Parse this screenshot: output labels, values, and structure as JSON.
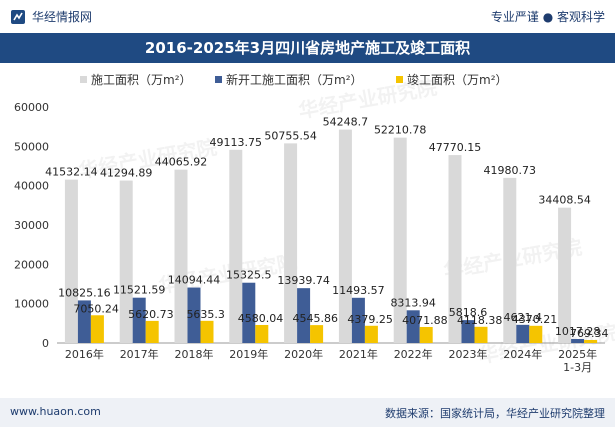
{
  "header": {
    "brand_left": "华经情报网",
    "brand_right": "专业严谨 ● 客观科学",
    "title": "2016-2025年3月四川省房地产施工及竣工面积"
  },
  "footer": {
    "url": "www.huaon.com",
    "source": "数据来源：国家统计局，华经产业研究院整理"
  },
  "watermark": "华经产业研究院",
  "colors": {
    "title_bg": "#1f4a82",
    "series_construction": "#d9d9d9",
    "series_new": "#3f5d96",
    "series_completed": "#f5c400"
  },
  "chart_data": {
    "type": "bar",
    "categories": [
      "2016年",
      "2017年",
      "2018年",
      "2019年",
      "2020年",
      "2021年",
      "2022年",
      "2023年",
      "2024年",
      "2025年\n1-3月"
    ],
    "series": [
      {
        "name": "施工面积（万m²）",
        "values": [
          41532.14,
          41294.89,
          44065.92,
          49113.75,
          50755.54,
          54248.7,
          52210.78,
          47770.15,
          41980.73,
          34408.54
        ]
      },
      {
        "name": "新开工施工面积（万m²）",
        "values": [
          10825.16,
          11521.59,
          14094.44,
          15325.5,
          13939.74,
          11493.57,
          8313.94,
          5818.6,
          4621.4,
          1017.28
        ]
      },
      {
        "name": "竣工面积（万m²）",
        "values": [
          7050.24,
          5620.73,
          5635.3,
          4580.04,
          4545.86,
          4379.25,
          4071.88,
          4118.38,
          4370.21,
          769.34
        ]
      }
    ],
    "ylim": [
      0,
      60000
    ],
    "yticks": [
      0,
      10000,
      20000,
      30000,
      40000,
      50000,
      60000
    ],
    "legend_position": "top-center",
    "grid": false
  }
}
